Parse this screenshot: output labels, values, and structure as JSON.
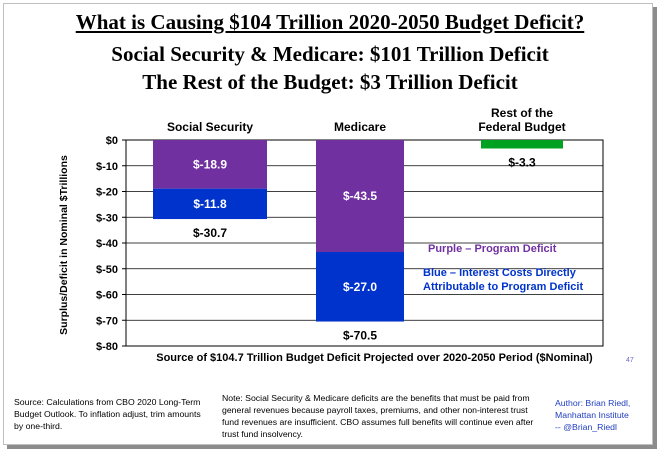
{
  "titles": {
    "line1": "What is Causing $104 Trillion 2020-2050 Budget Deficit?",
    "line2": "Social Security & Medicare: $101 Trillion Deficit",
    "line3": "The Rest of the Budget: $3 Trillion Deficit"
  },
  "chart_data": {
    "type": "bar",
    "stacked": true,
    "categories": [
      "Social Security",
      "Medicare",
      "Rest of the Federal Budget"
    ],
    "series": [
      {
        "name": "Purple – Program Deficit",
        "color": "#7030a0",
        "values": [
          -18.9,
          -43.5,
          -3.3
        ]
      },
      {
        "name": "Blue – Interest Costs Directly Attributable to Program Deficit",
        "color": "#0033cc",
        "values": [
          -11.8,
          -27.0,
          0
        ]
      }
    ],
    "totals": [
      -30.7,
      -70.5,
      -3.3
    ],
    "segment_labels": [
      [
        "$-18.9",
        "$-11.8"
      ],
      [
        "$-43.5",
        "$-27.0"
      ],
      [
        "",
        ""
      ]
    ],
    "total_labels": [
      "$-30.7",
      "$-70.5",
      "$-3.3"
    ],
    "category_labels": [
      [
        "Social Security"
      ],
      [
        "Medicare"
      ],
      [
        "Rest of the",
        "Federal Budget"
      ]
    ],
    "rest_color": "#00a020",
    "ylabel": "Surplus/Deficit in Nominal $Trillions",
    "xlabel": "Source of $104.7 Trillion Budget Deficit Projected over 2020-2050 Period ($Nominal)",
    "ylim": [
      -80,
      0
    ],
    "yticks": [
      0,
      -10,
      -20,
      -30,
      -40,
      -50,
      -60,
      -70,
      -80
    ],
    "ytick_labels": [
      "$0",
      "$-10",
      "$-20",
      "$-30",
      "$-40",
      "$-50",
      "$-60",
      "$-70",
      "$-80"
    ],
    "grid": true,
    "legend_lines": {
      "purple": [
        "Purple – Program Deficit"
      ],
      "blue": [
        "Blue – Interest Costs Directly",
        "Attributable to Program Deficit"
      ]
    },
    "legend_colors": {
      "purple": "#7030a0",
      "blue": "#0033cc"
    }
  },
  "footer": {
    "source": "Source: Calculations from CBO 2020 Long-Term Budget Outlook. To inflation adjust, trim amounts by one-third.",
    "note": "Note: Social Security & Medicare deficits are the benefits that must be paid from general revenues because payroll taxes, premiums, and other non-interest trust fund revenues are insufficient. CBO assumes  full benefits will continue even after trust fund insolvency.",
    "author_lines": [
      "Author: Brian Riedl,",
      "Manhattan Institute",
      "-- @Brian_Riedl"
    ],
    "page_number": "47"
  }
}
